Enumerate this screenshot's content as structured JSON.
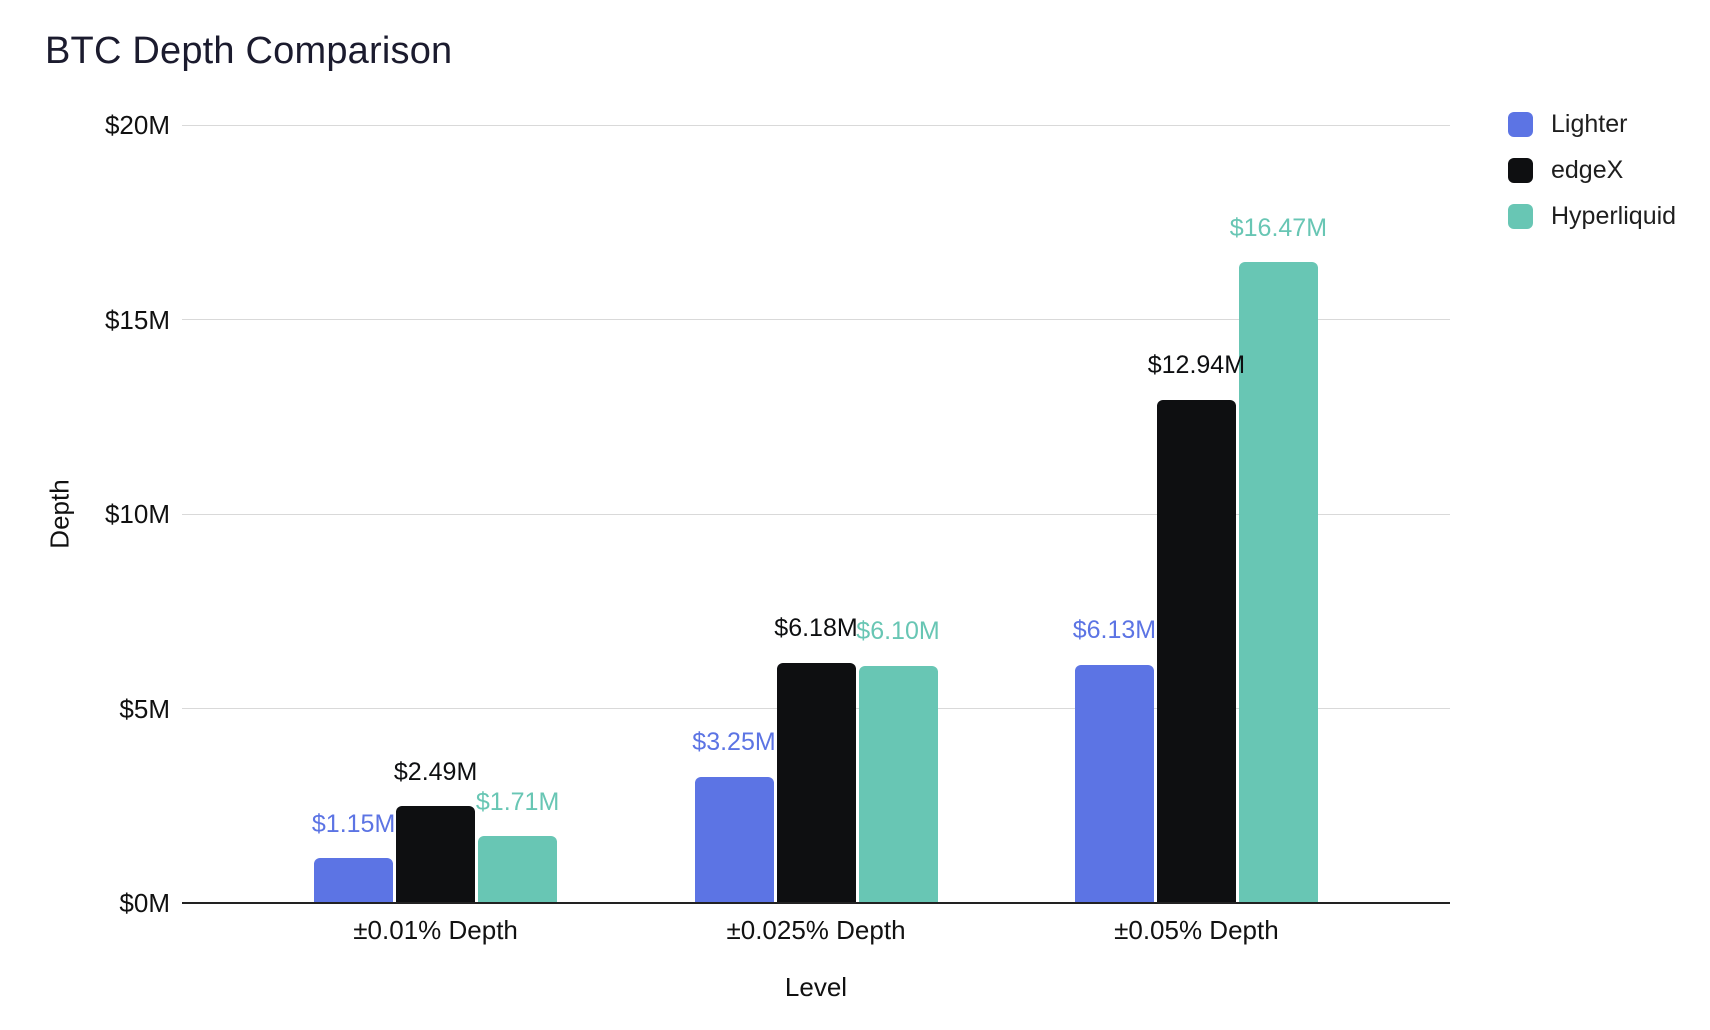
{
  "title": "BTC Depth Comparison",
  "colors": {
    "lighter": "#5c74e4",
    "edgex": "#0e0f11",
    "hyperliquid": "#68c6b4",
    "grid": "#d9d9d9",
    "axis_line": "#222222",
    "title_text": "#1b1b2e",
    "axis_text": "#111111"
  },
  "chart_data": {
    "type": "bar",
    "title": "BTC Depth Comparison",
    "xlabel": "Level",
    "ylabel": "Depth",
    "categories": [
      "±0.01% Depth",
      "±0.025% Depth",
      "±0.05% Depth"
    ],
    "series": [
      {
        "name": "Lighter",
        "color": "#5c74e4",
        "values": [
          1.15,
          3.25,
          6.13
        ],
        "labels": [
          "$1.15M",
          "$3.25M",
          "$6.13M"
        ]
      },
      {
        "name": "edgeX",
        "color": "#0e0f11",
        "values": [
          2.49,
          6.18,
          12.94
        ],
        "labels": [
          "$2.49M",
          "$6.18M",
          "$12.94M"
        ]
      },
      {
        "name": "Hyperliquid",
        "color": "#68c6b4",
        "values": [
          1.71,
          6.1,
          16.47
        ],
        "labels": [
          "$1.71M",
          "$6.10M",
          "$16.47M"
        ]
      }
    ],
    "ylim": [
      0,
      20
    ],
    "yticks": [
      {
        "value": 0,
        "label": "$0M"
      },
      {
        "value": 5,
        "label": "$5M"
      },
      {
        "value": 10,
        "label": "$10M"
      },
      {
        "value": 15,
        "label": "$15M"
      },
      {
        "value": 20,
        "label": "$20M"
      }
    ],
    "grid": true,
    "legend_position": "top-right"
  }
}
